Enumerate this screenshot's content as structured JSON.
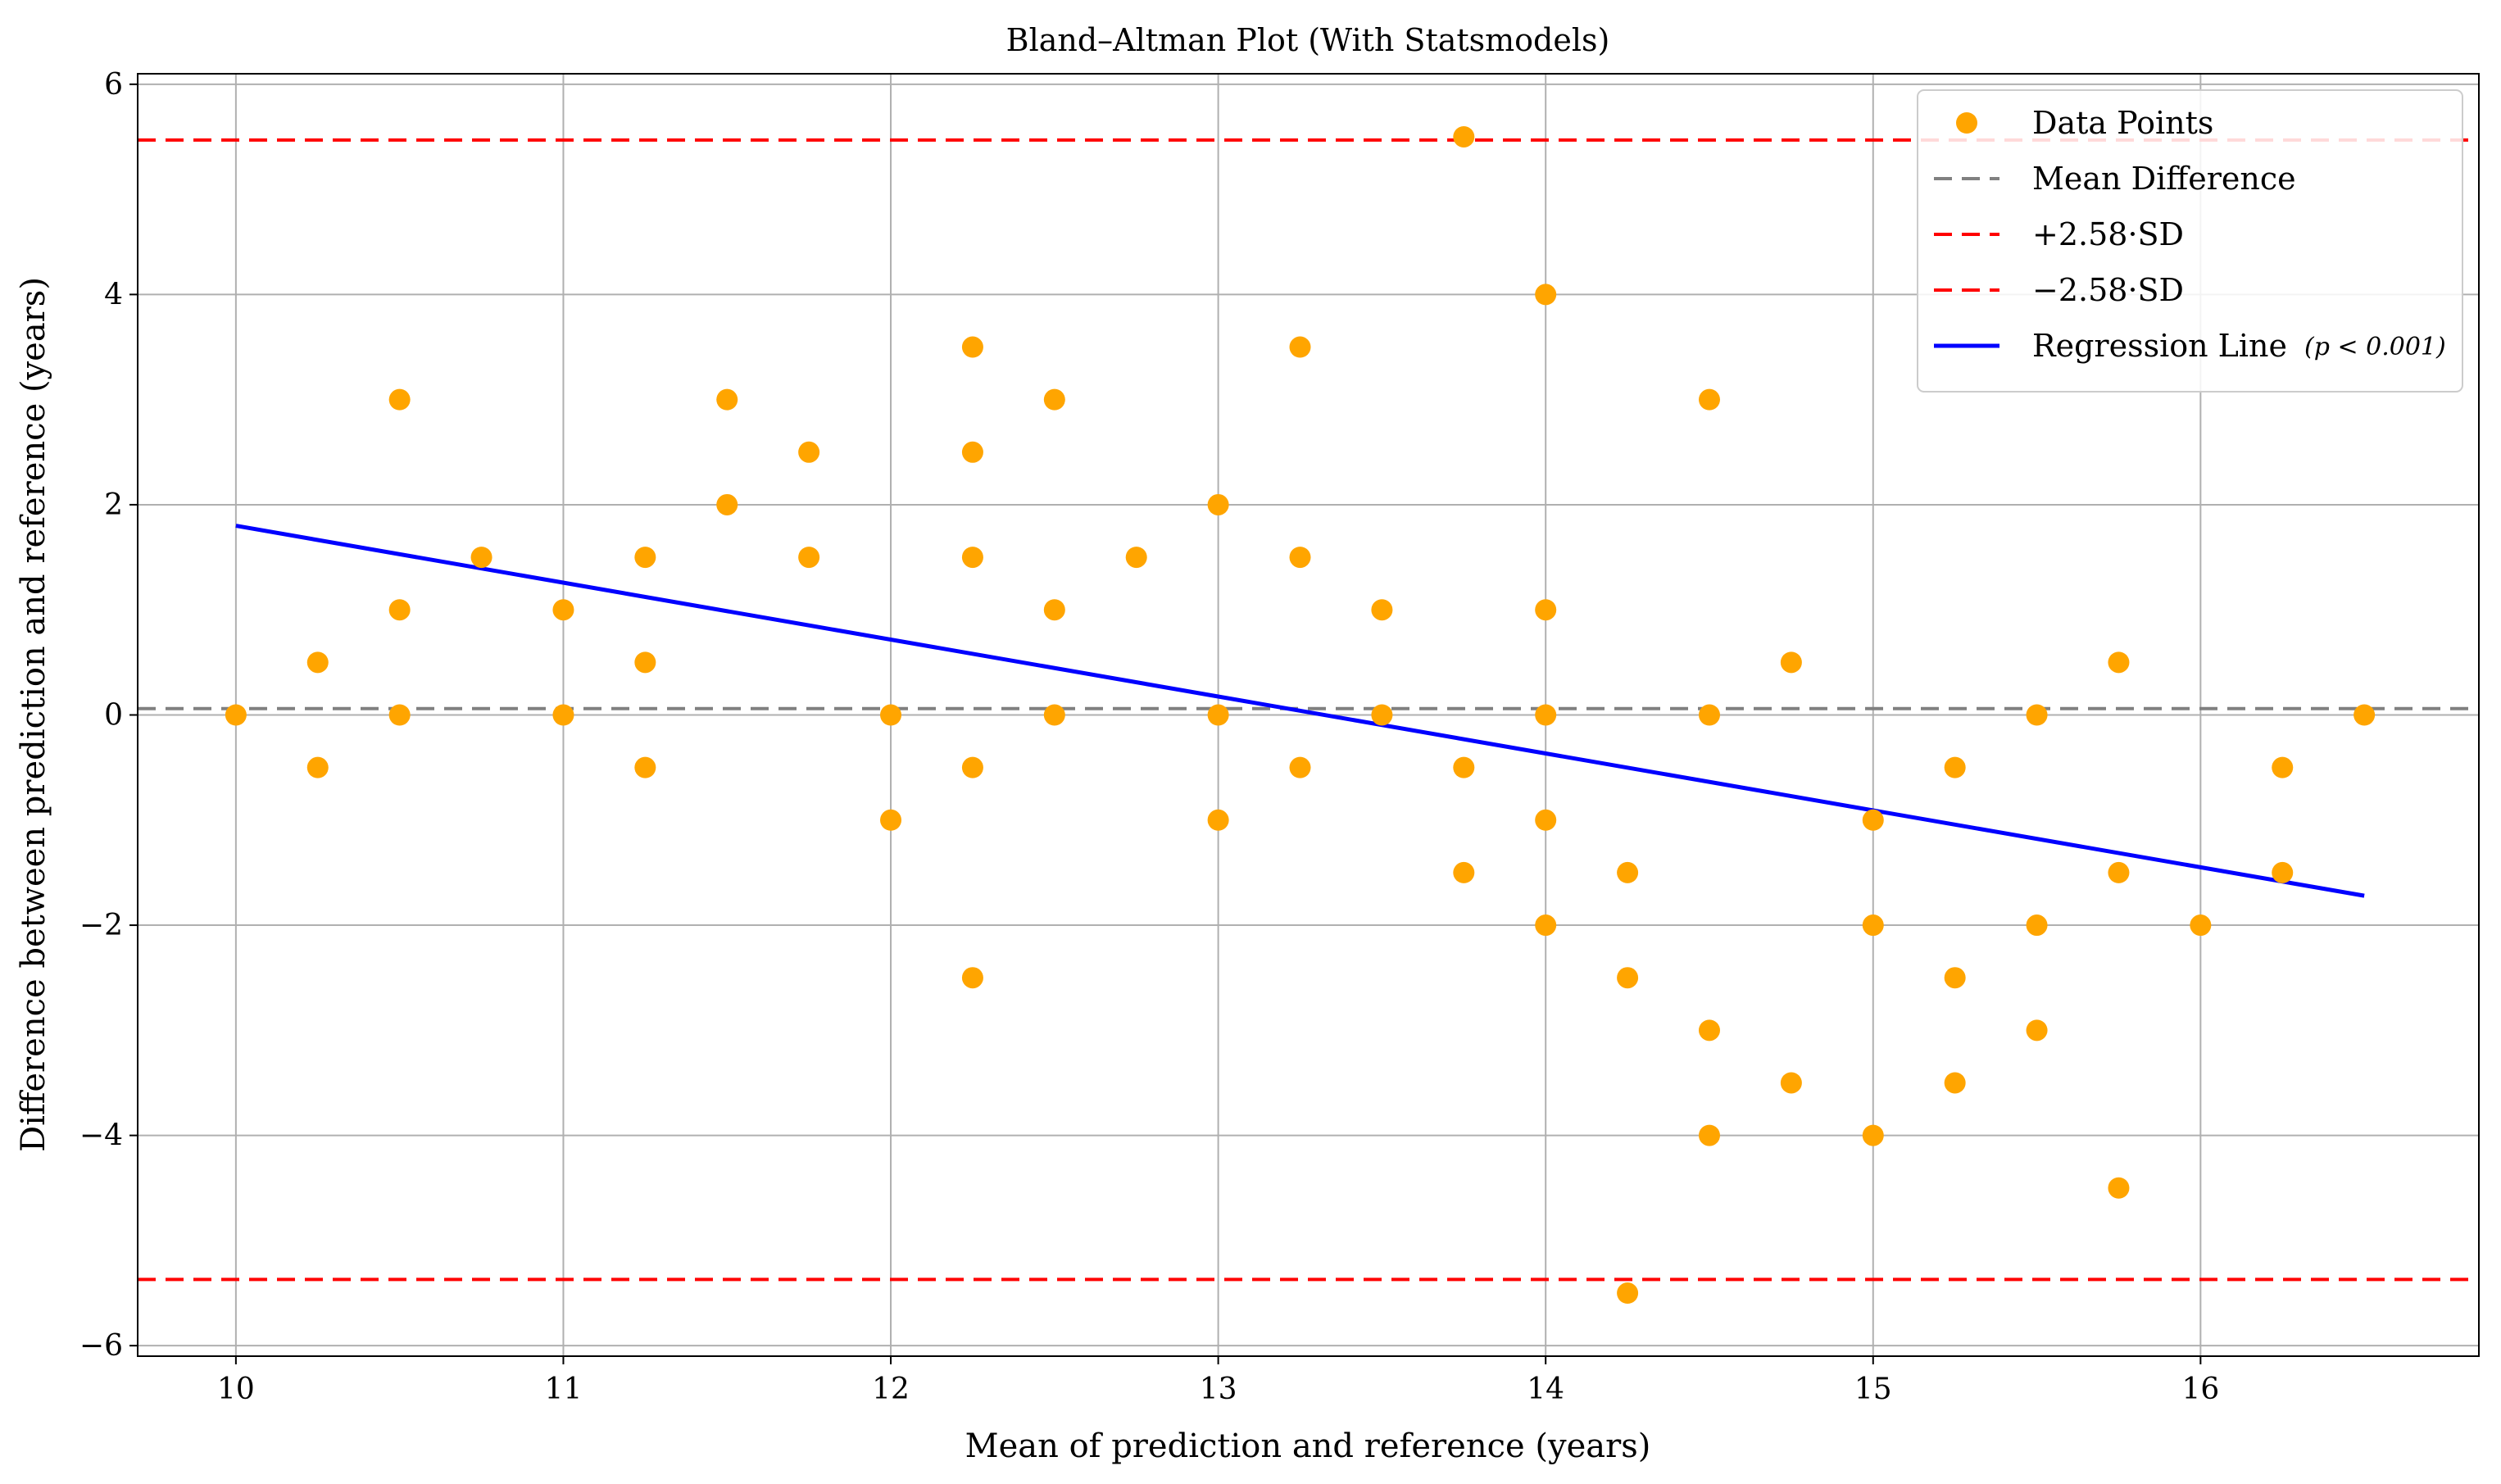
{
  "chart_data": {
    "type": "scatter",
    "title": "Bland–Altman Plot (With Statsmodels)",
    "xlabel": "Mean of prediction and reference (years)",
    "ylabel": "Difference between prediction and reference (years)",
    "xlim": [
      9.7,
      16.85
    ],
    "ylim": [
      -6.1,
      6.1
    ],
    "xticks": [
      10,
      11,
      12,
      13,
      14,
      15,
      16
    ],
    "yticks": [
      -6,
      -4,
      -2,
      0,
      2,
      4,
      6
    ],
    "xtick_labels": [
      "10",
      "11",
      "12",
      "13",
      "14",
      "15",
      "16"
    ],
    "ytick_labels": [
      "−6",
      "−4",
      "−2",
      "0",
      "2",
      "4",
      "6"
    ],
    "grid": true,
    "legend_position": "top-right",
    "series": [
      {
        "name": "Data Points",
        "kind": "scatter",
        "color": "#FFA500",
        "points": [
          [
            10,
            0
          ],
          [
            10.25,
            0.5
          ],
          [
            10.25,
            -0.5
          ],
          [
            10.5,
            3
          ],
          [
            10.5,
            1
          ],
          [
            10.5,
            0
          ],
          [
            10.75,
            1.5
          ],
          [
            11,
            1
          ],
          [
            11,
            0
          ],
          [
            11.25,
            1.5
          ],
          [
            11.25,
            0.5
          ],
          [
            11.25,
            -0.5
          ],
          [
            11.5,
            3
          ],
          [
            11.5,
            2
          ],
          [
            11.75,
            2.5
          ],
          [
            11.75,
            1.5
          ],
          [
            12,
            0
          ],
          [
            12,
            -1
          ],
          [
            12.25,
            3.5
          ],
          [
            12.25,
            2.5
          ],
          [
            12.25,
            1.5
          ],
          [
            12.25,
            -0.5
          ],
          [
            12.25,
            -2.5
          ],
          [
            12.5,
            3
          ],
          [
            12.5,
            1
          ],
          [
            12.5,
            0
          ],
          [
            12.75,
            1.5
          ],
          [
            13,
            2
          ],
          [
            13,
            0
          ],
          [
            13,
            -1
          ],
          [
            13.25,
            3.5
          ],
          [
            13.25,
            1.5
          ],
          [
            13.25,
            -0.5
          ],
          [
            13.5,
            1
          ],
          [
            13.5,
            0
          ],
          [
            13.75,
            5.5
          ],
          [
            13.75,
            -0.5
          ],
          [
            13.75,
            -1.5
          ],
          [
            14,
            4
          ],
          [
            14,
            1
          ],
          [
            14,
            0
          ],
          [
            14,
            -1
          ],
          [
            14,
            -2
          ],
          [
            14.25,
            -1.5
          ],
          [
            14.25,
            -2.5
          ],
          [
            14.25,
            -5.5
          ],
          [
            14.5,
            3
          ],
          [
            14.5,
            0
          ],
          [
            14.5,
            -3
          ],
          [
            14.5,
            -4
          ],
          [
            14.75,
            0.5
          ],
          [
            14.75,
            -3.5
          ],
          [
            15,
            -1
          ],
          [
            15,
            -2
          ],
          [
            15,
            -4
          ],
          [
            15.25,
            -0.5
          ],
          [
            15.25,
            -2.5
          ],
          [
            15.25,
            -3.5
          ],
          [
            15.5,
            0
          ],
          [
            15.5,
            -2
          ],
          [
            15.5,
            -3
          ],
          [
            15.75,
            0.5
          ],
          [
            15.75,
            -1.5
          ],
          [
            15.75,
            -4.5
          ],
          [
            16,
            -2
          ],
          [
            16.25,
            -0.5
          ],
          [
            16.25,
            -1.5
          ],
          [
            16.5,
            0
          ]
        ]
      },
      {
        "name": "Mean Difference",
        "kind": "hline",
        "y": 0.06,
        "color": "#808080",
        "style": "dashed"
      },
      {
        "name": "+2.58·SD",
        "kind": "hline",
        "y": 5.47,
        "color": "#FF0000",
        "style": "dashed"
      },
      {
        "name": "−2.58·SD",
        "kind": "hline",
        "y": -5.37,
        "color": "#FF0000",
        "style": "dashed"
      },
      {
        "name": "Regression Line",
        "kind": "line",
        "color": "#0000FF",
        "x": [
          10,
          16.5
        ],
        "y": [
          1.8,
          -1.72
        ]
      }
    ],
    "legend": [
      {
        "label": "Data Points",
        "marker": "dot",
        "color": "#FFA500"
      },
      {
        "label": "Mean Difference",
        "marker": "dash",
        "color": "#808080"
      },
      {
        "label": "+2.58·SD",
        "marker": "dash",
        "color": "#FF0000"
      },
      {
        "label": "−2.58·SD",
        "marker": "dash",
        "color": "#FF0000"
      },
      {
        "label": "Regression Line",
        "marker": "line",
        "color": "#0000FF",
        "note": "(p < 0.001)"
      }
    ]
  }
}
